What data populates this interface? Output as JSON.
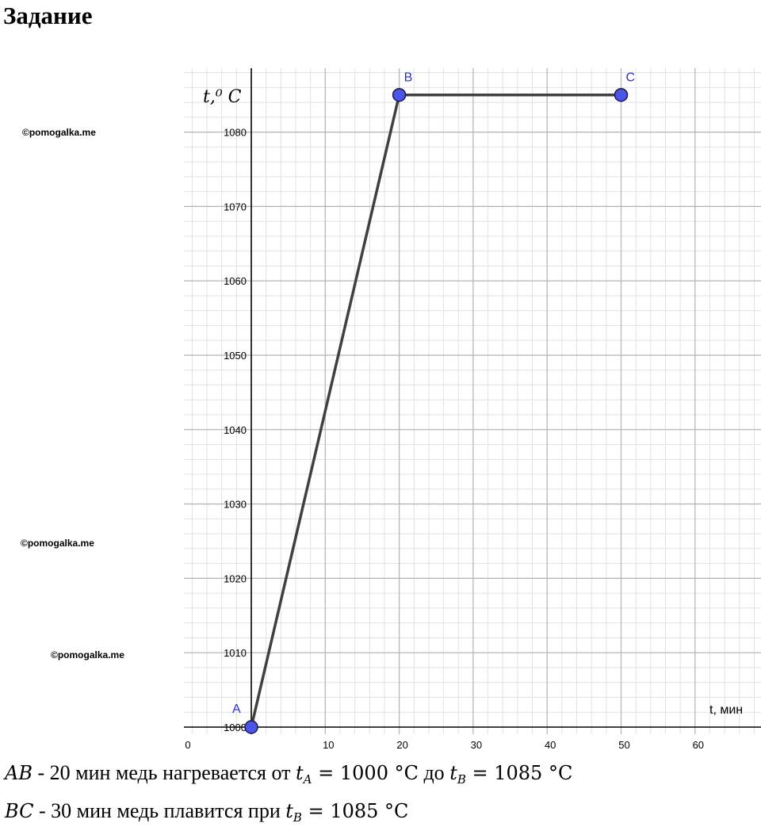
{
  "page": {
    "title": "Задание"
  },
  "watermarks": [
    "©pomogalka.me",
    "©pomogalka.me",
    "©pomogalka.me"
  ],
  "chart_data": {
    "type": "line",
    "ylabel": "t,⁰ C",
    "xlabel": "t, мин",
    "x_ticks": [
      0,
      10,
      20,
      30,
      40,
      50,
      60
    ],
    "x_tick_labels": [
      "0",
      "10",
      "20",
      "30",
      "40",
      "50",
      "60"
    ],
    "y_ticks": [
      1000,
      1010,
      1020,
      1030,
      1040,
      1050,
      1060,
      1070,
      1080
    ],
    "y_tick_labels": [
      "1000",
      "1010",
      "1020",
      "1030",
      "1040",
      "1050",
      "1060",
      "1070",
      "1080"
    ],
    "xlim": [
      -9,
      69
    ],
    "ylim": [
      1000,
      1090
    ],
    "grid": true,
    "points": [
      {
        "name": "A",
        "x": 0,
        "y": 1000
      },
      {
        "name": "B",
        "x": 20,
        "y": 1085
      },
      {
        "name": "C",
        "x": 50,
        "y": 1085
      }
    ],
    "colors": {
      "line": "#404040",
      "point": "#4d55e6",
      "point_label": "#2d2fd0",
      "grid_major": "#b4b4b4",
      "grid_minor": "#e2e2e2"
    }
  },
  "description": {
    "line1": {
      "seg": "AB",
      "text1": " - 20 мин медь нагревается от ",
      "var1": "t",
      "sub1": "A",
      "eq1": " = 1000 °C",
      "text2": " до ",
      "var2": "t",
      "sub2": "B",
      "eq2": " = 1085 °C"
    },
    "line2": {
      "seg": "BC",
      "text1": " - 30 мин медь плавится при ",
      "var1": "t",
      "sub1": "B",
      "eq1": " = 1085 °C"
    }
  }
}
